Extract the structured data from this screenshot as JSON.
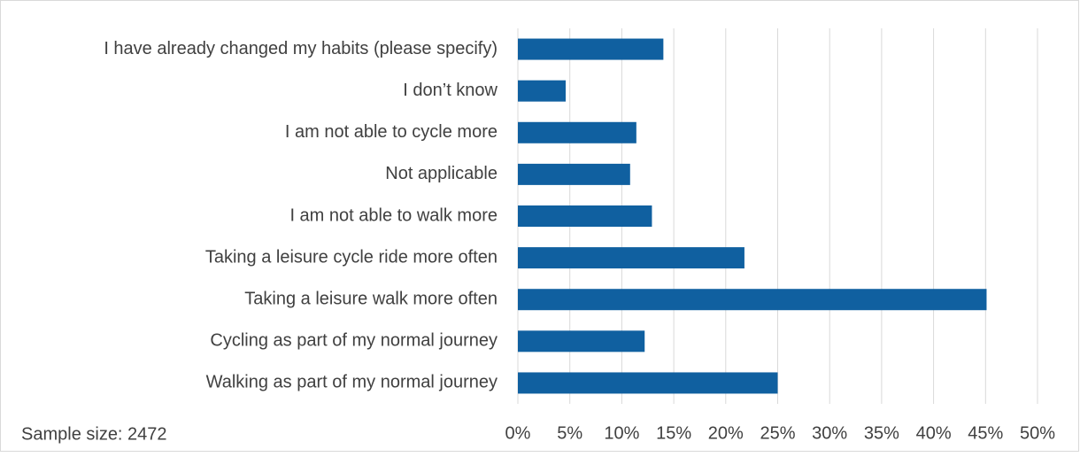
{
  "chart_data": {
    "type": "bar",
    "orientation": "horizontal",
    "categories": [
      "I have already changed my habits (please specify)",
      "I don’t know",
      "I am not able to cycle more",
      "Not applicable",
      "I am not able to walk more",
      "Taking a leisure cycle ride more often",
      "Taking a leisure walk more often",
      "Cycling as part of my normal journey",
      "Walking as part of my normal journey"
    ],
    "values": [
      14.0,
      4.6,
      11.4,
      10.8,
      12.9,
      21.8,
      45.1,
      12.2,
      25.0
    ],
    "color": "#1060a0",
    "xlim": [
      0,
      50
    ],
    "xticks": [
      {
        "value": 0,
        "label": "0%"
      },
      {
        "value": 5,
        "label": "5%"
      },
      {
        "value": 10,
        "label": "10%"
      },
      {
        "value": 15,
        "label": "15%"
      },
      {
        "value": 20,
        "label": "20%"
      },
      {
        "value": 25,
        "label": "25%"
      },
      {
        "value": 30,
        "label": "30%"
      },
      {
        "value": 35,
        "label": "35%"
      },
      {
        "value": 40,
        "label": "40%"
      },
      {
        "value": 45,
        "label": "45%"
      },
      {
        "value": 50,
        "label": "50%"
      }
    ],
    "grid": true,
    "annotation": "Sample size: 2472"
  }
}
